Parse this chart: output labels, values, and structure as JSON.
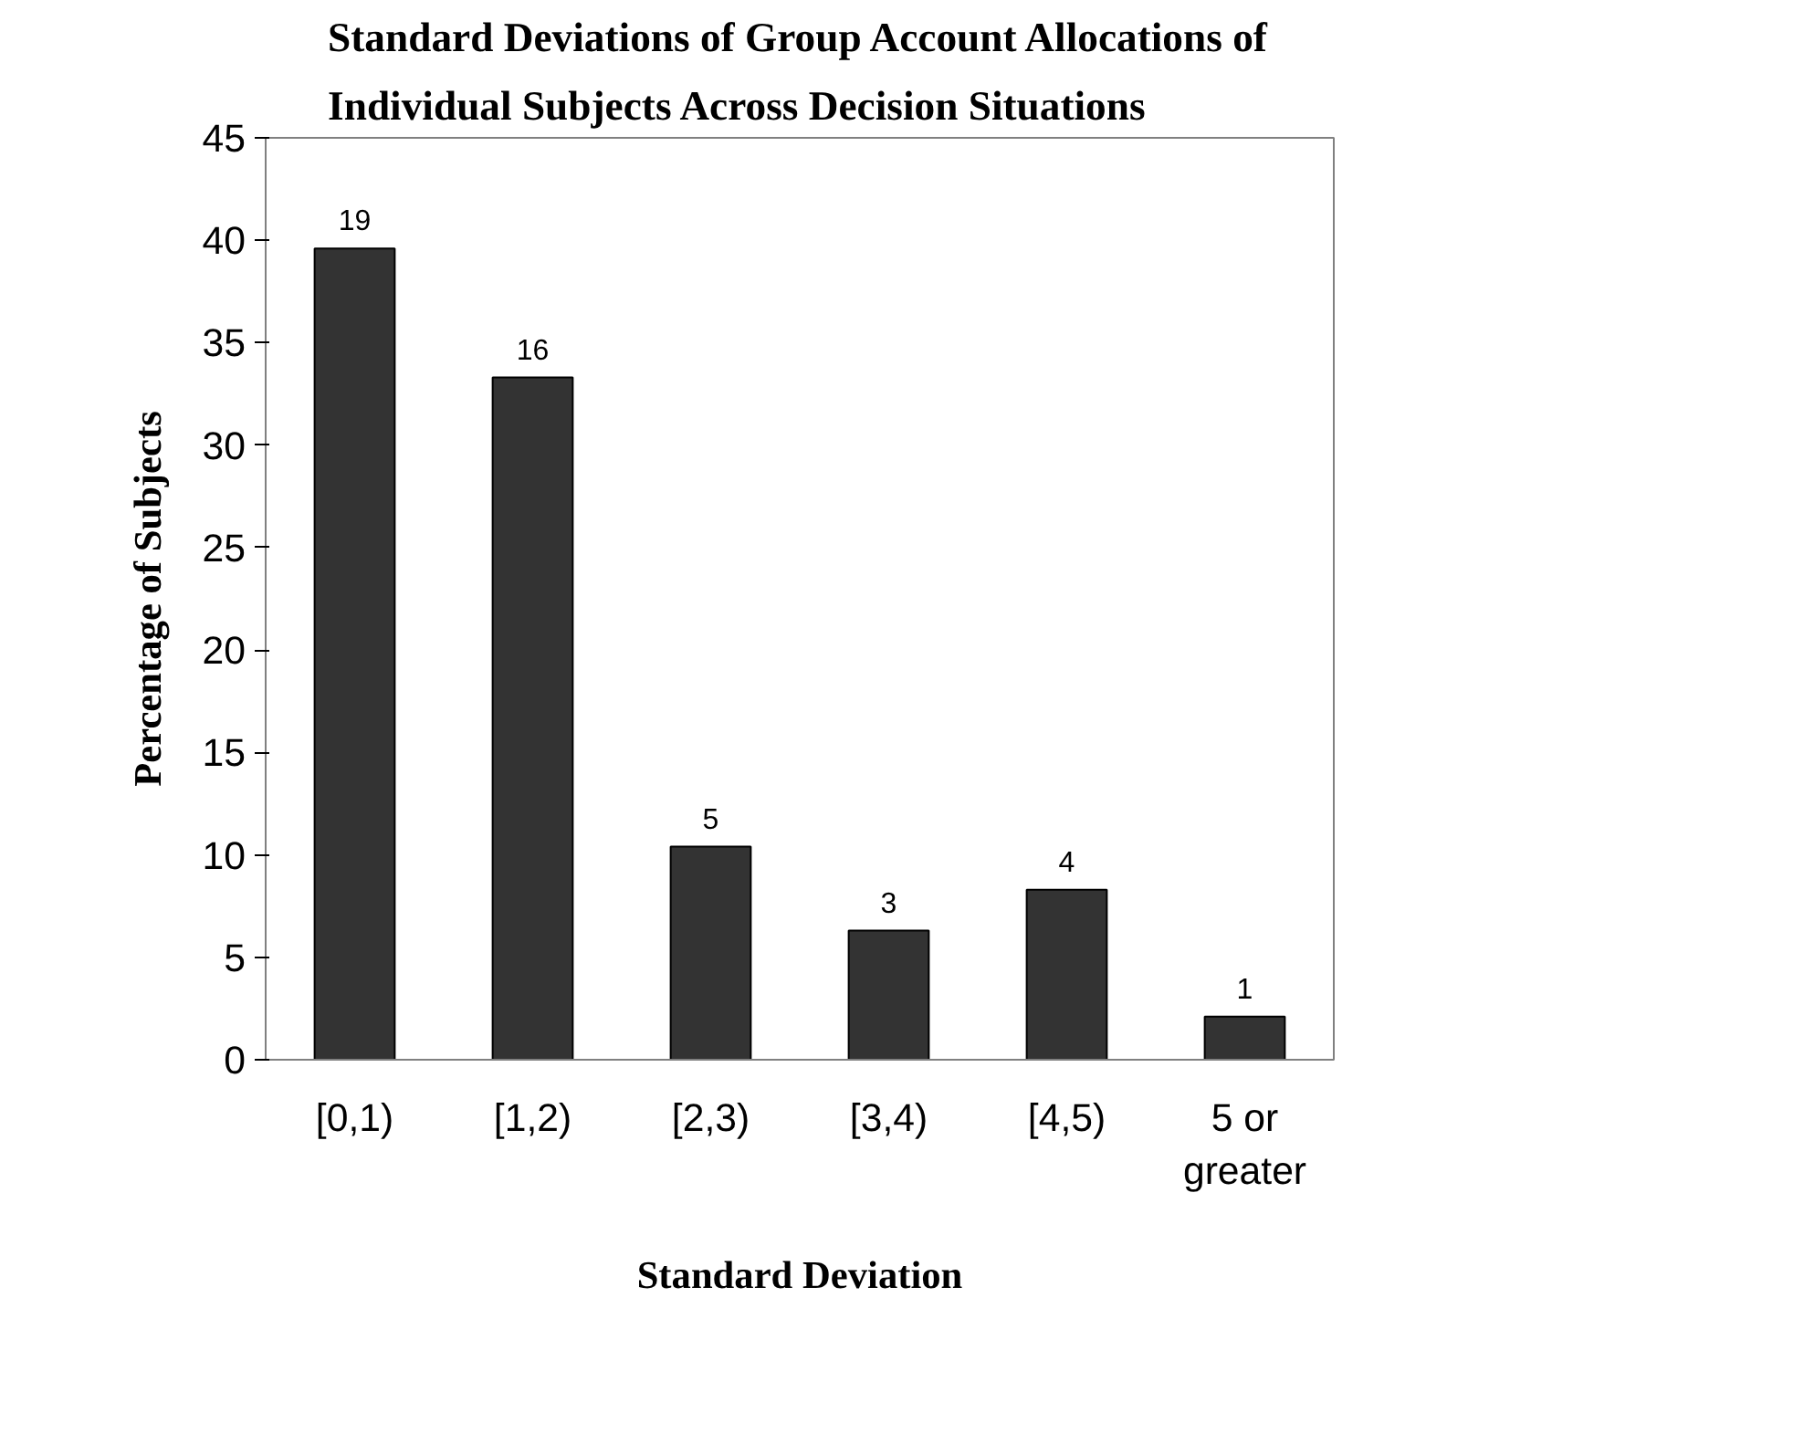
{
  "chart_data": {
    "type": "bar",
    "title": "Standard Deviations of Group Account Allocations of Individual Subjects Across Decision Situations",
    "xlabel": "Standard Deviation",
    "ylabel": "Percentage of Subjects",
    "categories": [
      "[0,1)",
      "[1,2)",
      "[2,3)",
      "[3,4)",
      "[4,5)",
      "5 or greater"
    ],
    "values": [
      39.6,
      33.3,
      10.4,
      6.3,
      8.3,
      2.1
    ],
    "annotations": [
      {
        "text": "19",
        "x": "[0,1)",
        "y": 39.6
      },
      {
        "text": "16",
        "x": "[1,2)",
        "y": 33.3
      },
      {
        "text": "5",
        "x": "[2,3)",
        "y": 10.4
      },
      {
        "text": "3",
        "x": "[3,4)",
        "y": 6.3
      },
      {
        "text": "4",
        "x": "[4,5)",
        "y": 8.3
      },
      {
        "text": "1",
        "x": "5 or greater",
        "y": 2.1
      }
    ],
    "color": "#333333",
    "ylim": [
      0,
      45
    ],
    "yticks": [
      0,
      5,
      10,
      15,
      20,
      25,
      30,
      35,
      40,
      45
    ],
    "grid": false
  }
}
